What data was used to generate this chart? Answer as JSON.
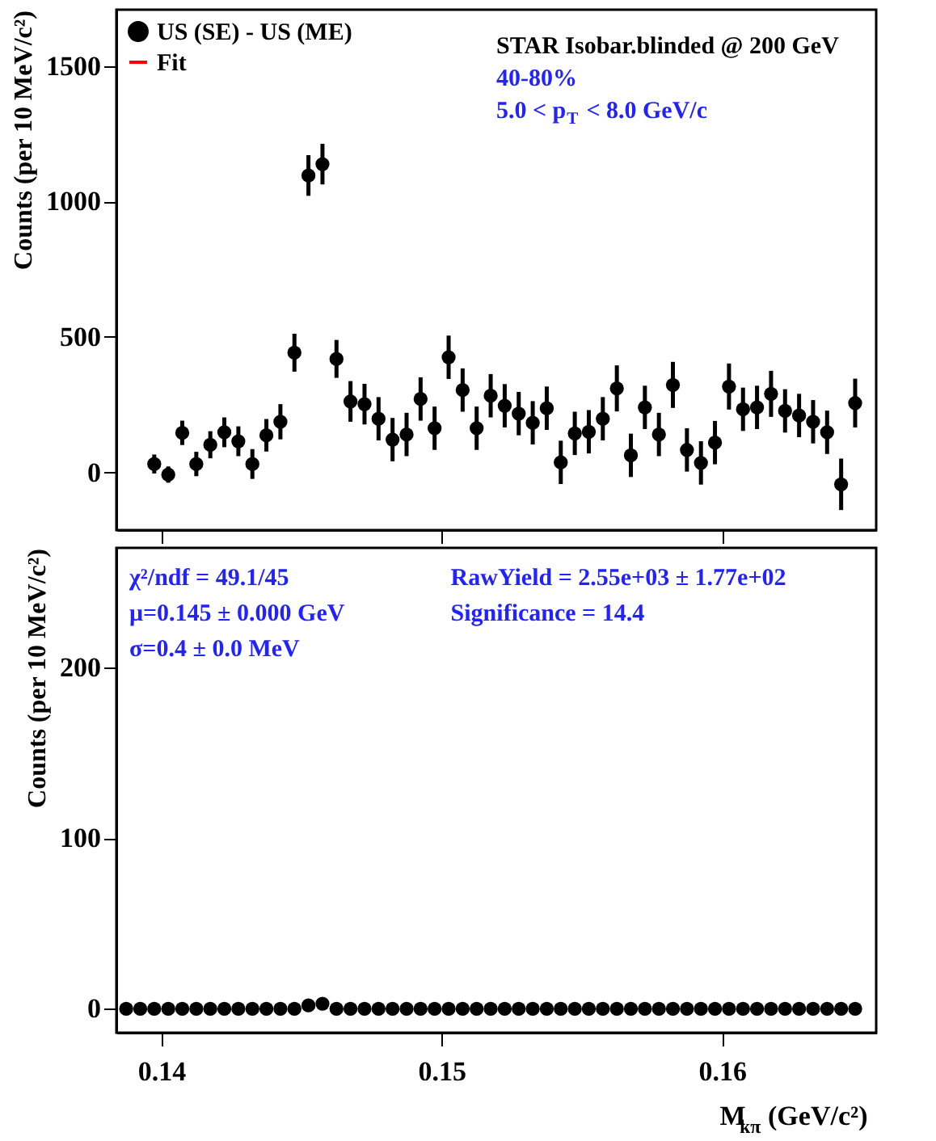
{
  "chart_data": [
    {
      "type": "scatter",
      "x": [
        0.13975,
        0.14025,
        0.14075,
        0.14125,
        0.14175,
        0.14225,
        0.14275,
        0.14325,
        0.14375,
        0.14425,
        0.14475,
        0.14525,
        0.14575,
        0.14625,
        0.14675,
        0.14725,
        0.14775,
        0.14825,
        0.14875,
        0.14925,
        0.14975,
        0.15025,
        0.15075,
        0.15125,
        0.15175,
        0.15225,
        0.15275,
        0.15325,
        0.15375,
        0.15425,
        0.15475,
        0.15525,
        0.15575,
        0.15625,
        0.15675,
        0.15725,
        0.15775,
        0.15825,
        0.15875,
        0.15925,
        0.15975,
        0.16025,
        0.16075,
        0.16125,
        0.16175,
        0.16225,
        0.16275,
        0.16325,
        0.16375,
        0.16425,
        0.16475
      ],
      "series": [
        {
          "name": "US (SE) - US (ME)",
          "color": "#000000",
          "values": [
            31,
            -8,
            146,
            31,
            102,
            148,
            115,
            31,
            137,
            187,
            442,
            1096,
            1138,
            419,
            262,
            252,
            198,
            121,
            140,
            271,
            163,
            425,
            304,
            163,
            283,
            246,
            217,
            183,
            237,
            37,
            144,
            150,
            198,
            310,
            63,
            240,
            140,
            323,
            83,
            35,
            110,
            317,
            233,
            240,
            290,
            227,
            210,
            187,
            148,
            -44,
            256
          ],
          "errors": [
            35,
            30,
            45,
            45,
            50,
            55,
            55,
            55,
            60,
            65,
            70,
            75,
            75,
            70,
            75,
            75,
            80,
            80,
            80,
            80,
            80,
            80,
            80,
            80,
            80,
            80,
            80,
            80,
            80,
            80,
            80,
            80,
            80,
            85,
            80,
            80,
            80,
            85,
            80,
            80,
            80,
            85,
            80,
            80,
            85,
            80,
            80,
            80,
            80,
            95,
            90
          ]
        },
        {
          "name": "Fit",
          "color": "#ff0000",
          "type": "line",
          "values": [
            null,
            null,
            null,
            null,
            null,
            null,
            null,
            null,
            null,
            null,
            null,
            null,
            null,
            null,
            null,
            null,
            null,
            null,
            null,
            null,
            null,
            null,
            null,
            null,
            null,
            null,
            null,
            null,
            null,
            null,
            null,
            null,
            null,
            null,
            null,
            null,
            null,
            null,
            null,
            null,
            null,
            null,
            null,
            null,
            null,
            null,
            null,
            null,
            null,
            null,
            null
          ]
        }
      ],
      "ylabel": "Counts (per 10 MeV/c²)",
      "xlim": [
        0.1384,
        0.1655
      ],
      "xticks": [
        0.14,
        0.15,
        0.16
      ],
      "ylim": [
        -213,
        1708
      ],
      "yticks": [
        0,
        500,
        1000,
        1500
      ],
      "tick_labels": "y",
      "marker": "circle",
      "grid": false,
      "legend": "top left",
      "annotations": [
        "STAR Isobar.blinded @ 200 GeV",
        "40-80%",
        "5.0 < p$_{T}$ < 8.0 GeV/c"
      ]
    },
    {
      "type": "scatter",
      "x": [
        0.13875,
        0.13925,
        0.13975,
        0.14025,
        0.14075,
        0.14125,
        0.14175,
        0.14225,
        0.14275,
        0.14325,
        0.14375,
        0.14425,
        0.14475,
        0.14525,
        0.14575,
        0.14625,
        0.14675,
        0.14725,
        0.14775,
        0.14825,
        0.14875,
        0.14925,
        0.14975,
        0.15025,
        0.15075,
        0.15125,
        0.15175,
        0.15225,
        0.15275,
        0.15325,
        0.15375,
        0.15425,
        0.15475,
        0.15525,
        0.15575,
        0.15625,
        0.15675,
        0.15725,
        0.15775,
        0.15825,
        0.15875,
        0.15925,
        0.15975,
        0.16025,
        0.16075,
        0.16125,
        0.16175,
        0.16225,
        0.16275,
        0.16325,
        0.16375,
        0.16425,
        0.16475
      ],
      "series": [
        {
          "color": "#000000",
          "values": [
            0,
            0,
            0,
            0,
            0,
            0,
            0,
            0,
            0,
            0,
            0,
            0,
            0,
            2,
            3,
            0,
            0,
            0,
            0,
            0,
            0,
            0,
            0,
            0,
            0,
            0,
            0,
            0,
            0,
            0,
            0,
            0,
            0,
            0,
            0,
            0,
            0,
            0,
            0,
            0,
            0,
            0,
            0,
            0,
            0,
            0,
            0,
            0,
            0,
            0,
            0,
            0,
            0
          ]
        }
      ],
      "xlabel": "M$_{kπ}$ (GeV/c²)",
      "ylabel": "Counts (per 10 MeV/c²)",
      "xlim": [
        0.1384,
        0.1655
      ],
      "xticks": [
        0.14,
        0.15,
        0.16
      ],
      "ylim": [
        -14,
        270
      ],
      "yticks": [
        0,
        100,
        200
      ],
      "marker": "circle",
      "grid": false,
      "annotations": [
        "χ²/ndf = 49.1/45",
        "μ=0.145 ± 0.000 GeV",
        "σ=0.4 ± 0.0 MeV",
        "RawYield = 2.55e+03 ± 1.77e+02",
        "Significance = 14.4"
      ]
    }
  ]
}
